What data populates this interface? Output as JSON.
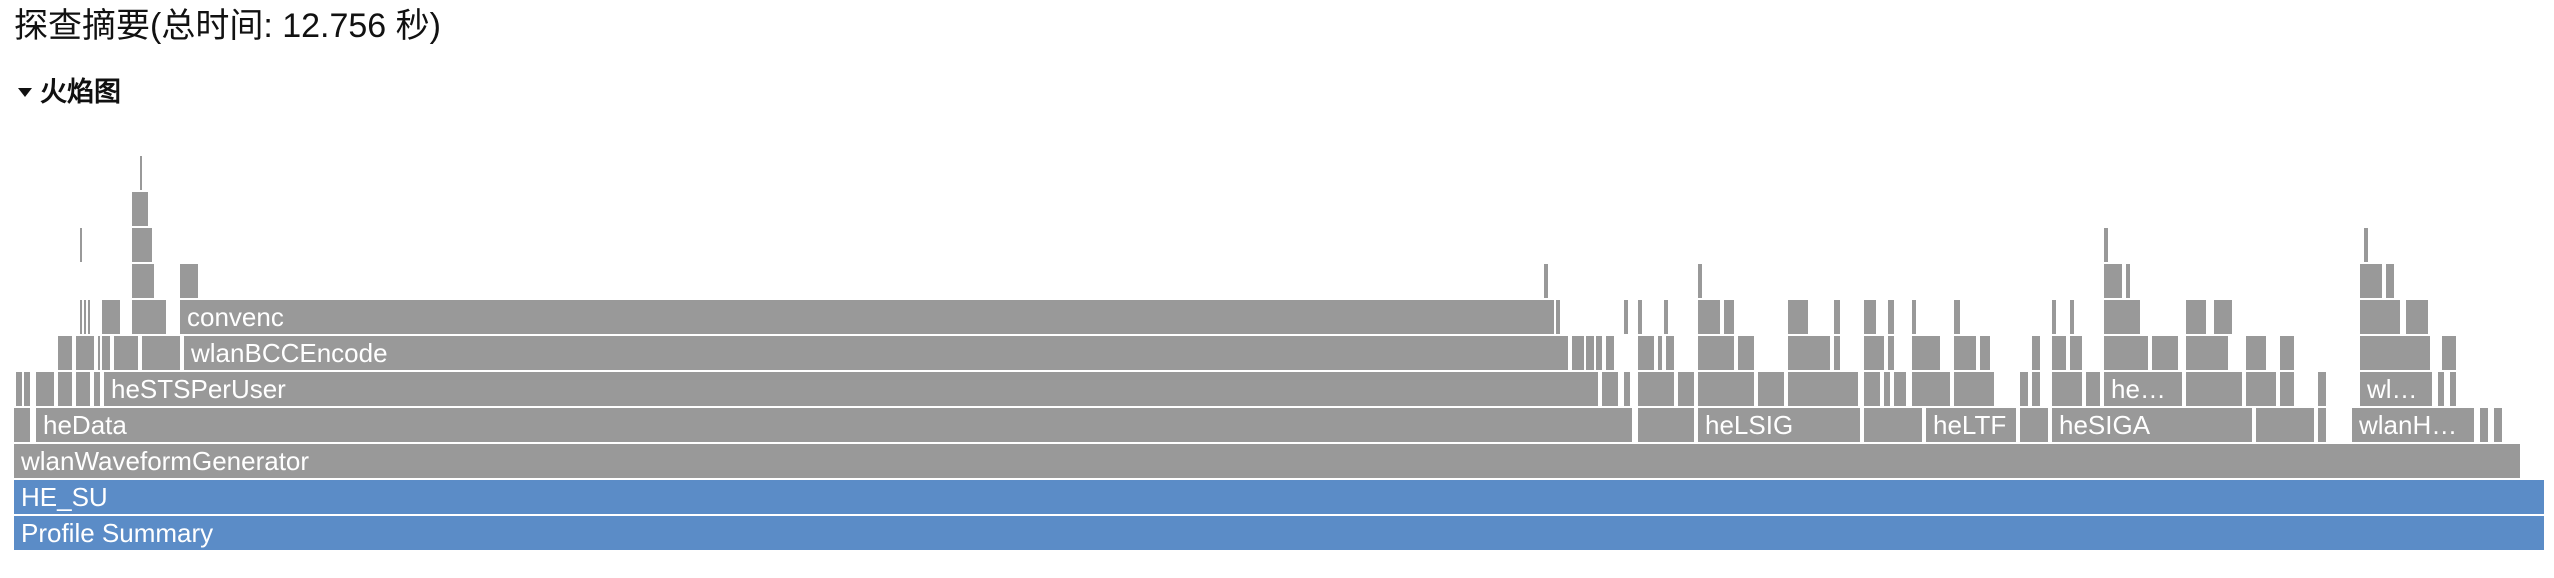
{
  "title": "探查摘要(总时间: 12.756 秒)",
  "flame_section": {
    "toggle_label": "火焰图",
    "toggle_icon": "caret-down-icon"
  },
  "colors": {
    "frame": "#999999",
    "frame_blue": "#5b8cc7",
    "label": "#ffffff",
    "thin_frame": "#a9a9a9"
  },
  "frames": {
    "profile_summary": "Profile Summary",
    "he_su": "HE_SU",
    "wlan_waveform_generator": "wlanWaveformGenerator",
    "he_data": "heData",
    "he_lsig": "heLSIG",
    "he_ltf": "heLTF",
    "he_siga": "heSIGA",
    "wlan_h": "wlanH…",
    "he_sts_per_user": "heSTSPerUser",
    "he_ellipsis": "he…",
    "wl_ellipsis": "wl…",
    "wlan_bcc_encode": "wlanBCCEncode",
    "convenc": "convenc"
  }
}
